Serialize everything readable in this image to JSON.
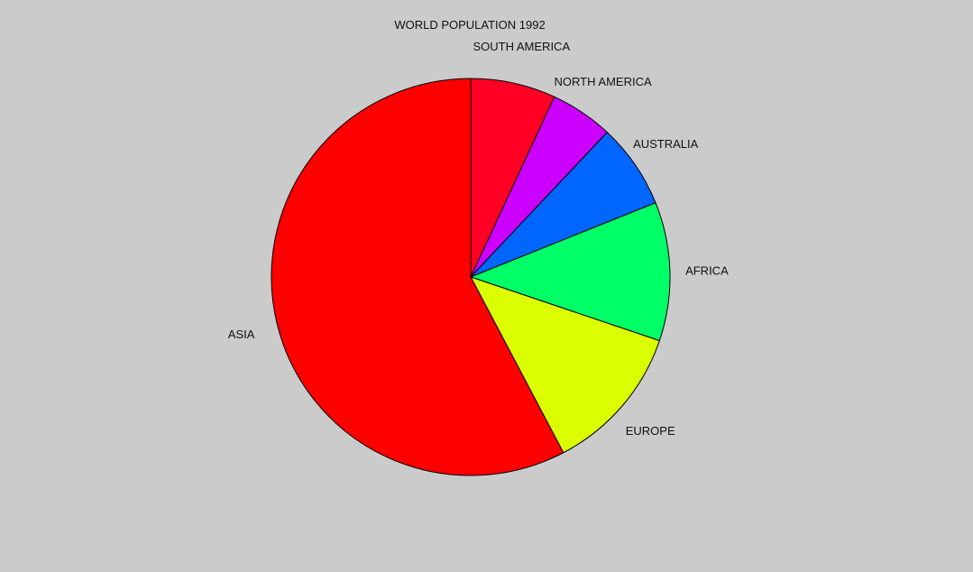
{
  "chart_data": {
    "type": "pie",
    "title": "WORLD POPULATION 1992",
    "start_angle_deg": 90,
    "direction": "clockwise",
    "slices": [
      {
        "label": "SOUTH AMERICA",
        "value": 6.9,
        "color": "#ff0024"
      },
      {
        "label": "NORTH AMERICA",
        "value": 5.1,
        "color": "#cc00ff"
      },
      {
        "label": "AUSTRALIA",
        "value": 6.9,
        "color": "#0066ff"
      },
      {
        "label": "AFRICA",
        "value": 11.3,
        "color": "#00ff66"
      },
      {
        "label": "EUROPE",
        "value": 12.1,
        "color": "#dbff00"
      },
      {
        "label": "ASIA",
        "value": 57.7,
        "color": "#ff0000"
      }
    ],
    "outline_color": "#000000",
    "background_color": "#cbcbcb"
  }
}
